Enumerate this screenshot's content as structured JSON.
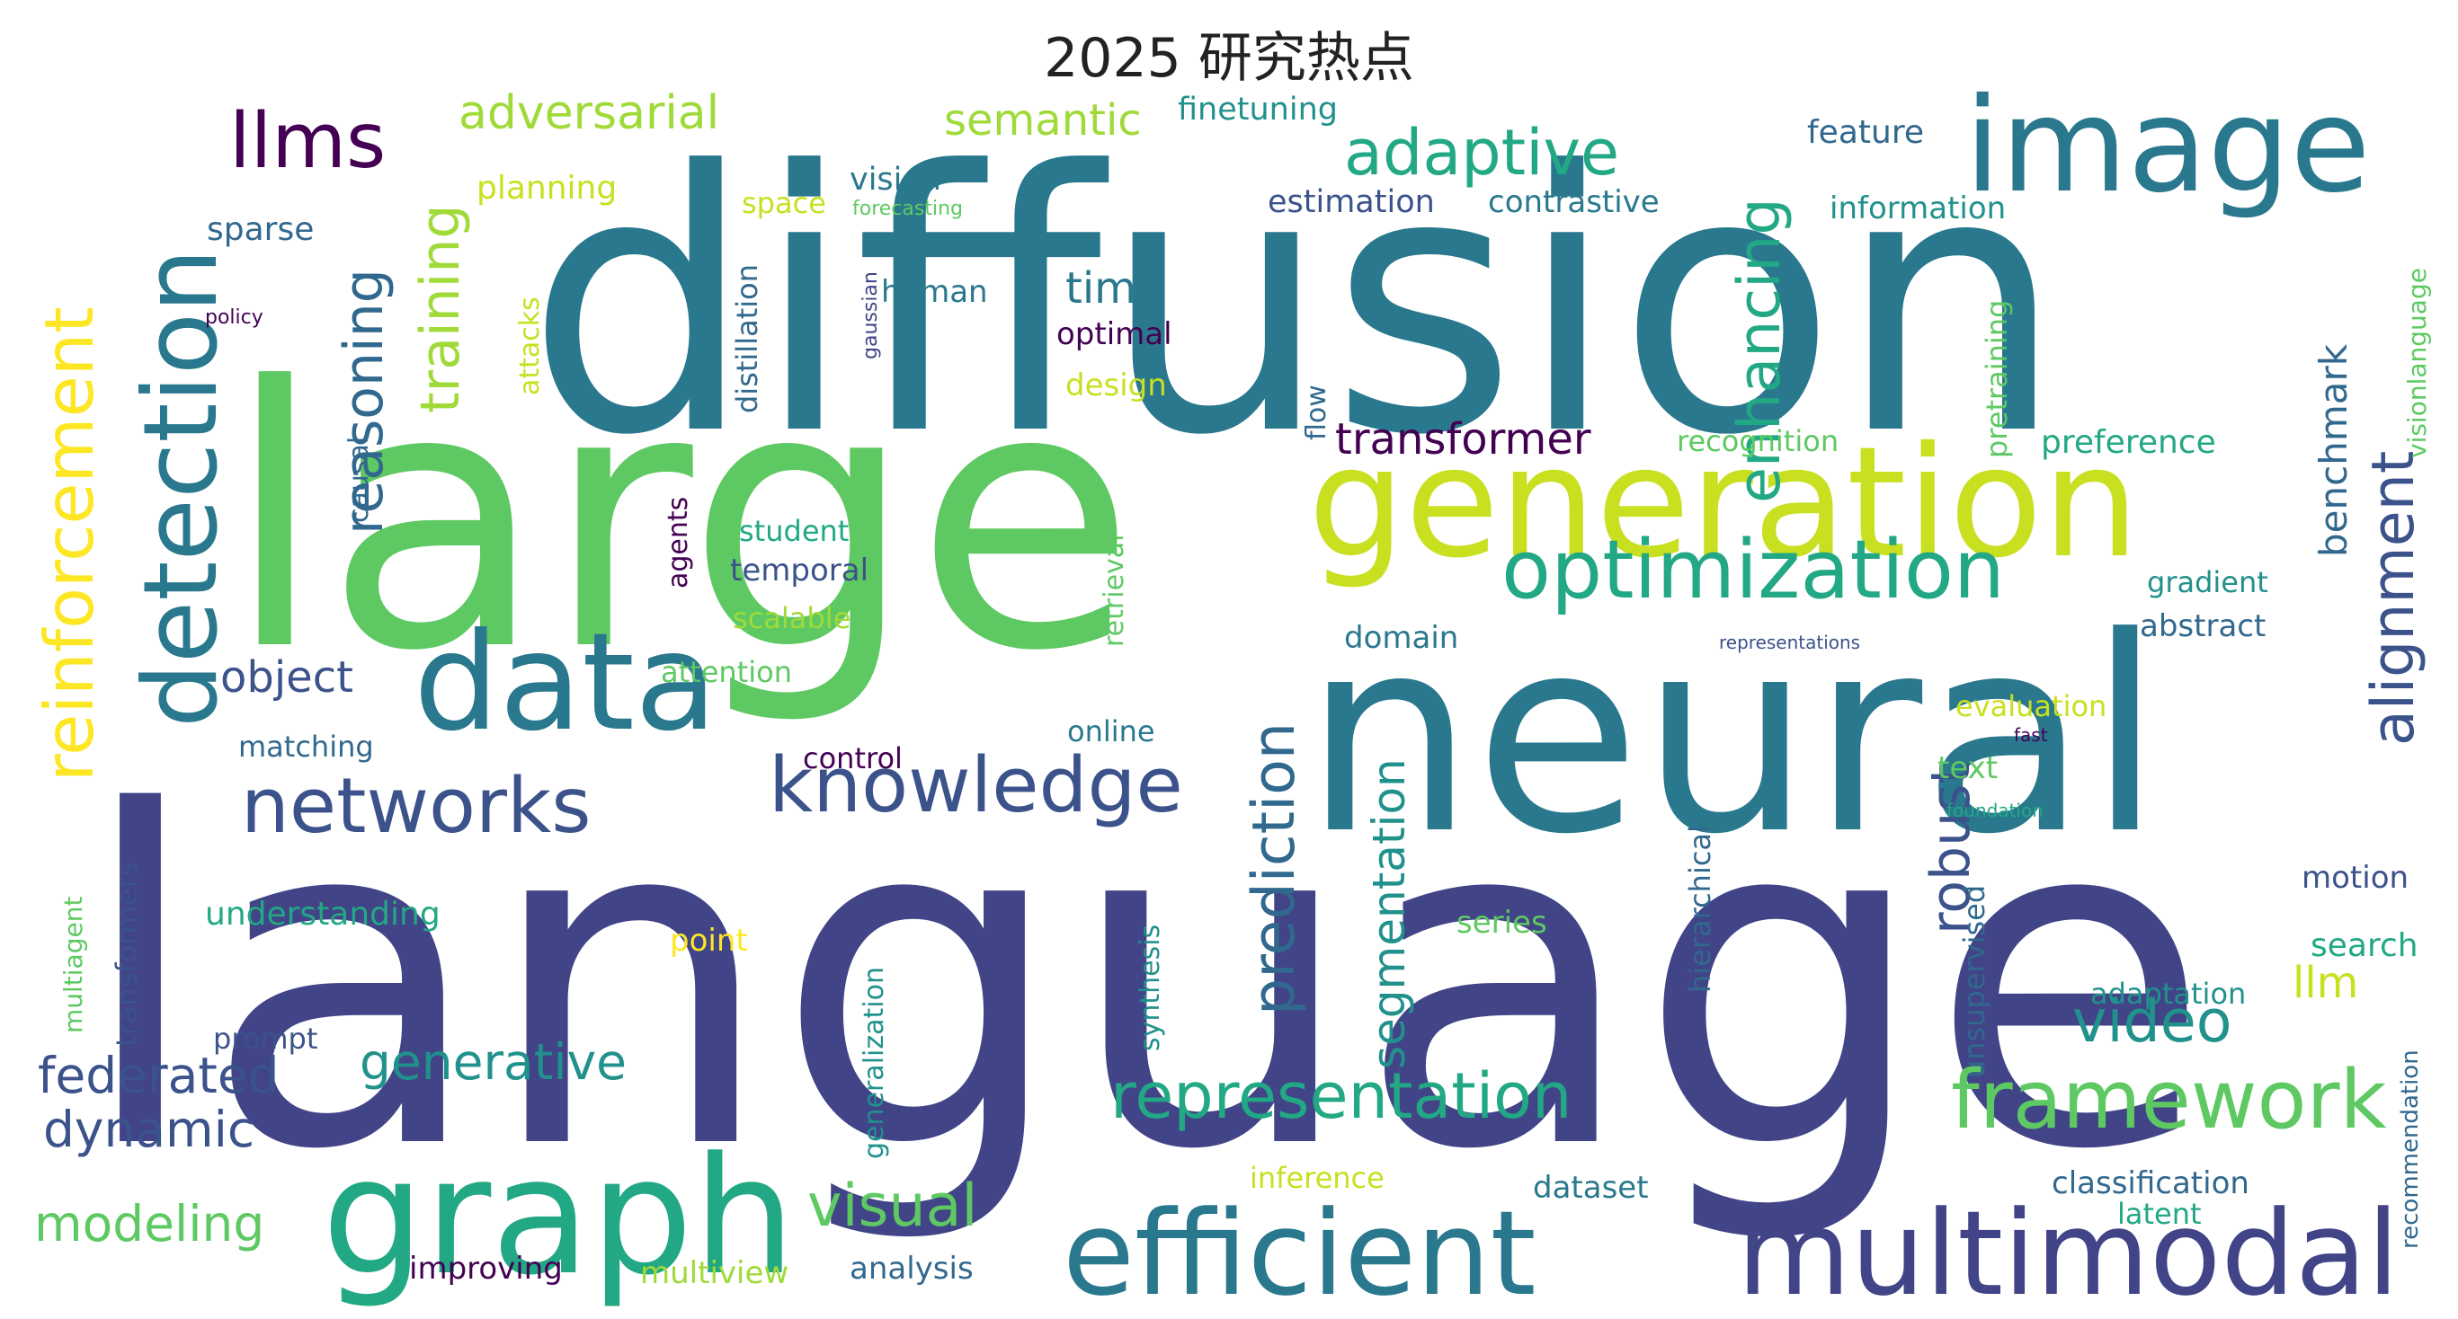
{
  "title": "2025 研究热点",
  "palette": "viridis",
  "words": [
    {
      "text": "language",
      "color": "#414487"
    },
    {
      "text": "diffusion",
      "color": "#2a788e"
    },
    {
      "text": "large",
      "color": "#5ec962"
    },
    {
      "text": "neural",
      "color": "#2a788e"
    },
    {
      "text": "generation",
      "color": "#c8e020"
    },
    {
      "text": "image",
      "color": "#2a788e"
    },
    {
      "text": "graph",
      "color": "#22a884"
    },
    {
      "text": "efficient",
      "color": "#2a788e"
    },
    {
      "text": "multimodal",
      "color": "#414487"
    },
    {
      "text": "data",
      "color": "#2a788e"
    },
    {
      "text": "detection",
      "color": "#2a788e"
    },
    {
      "text": "optimization",
      "color": "#22a884"
    },
    {
      "text": "reinforcement",
      "color": "#fde725"
    },
    {
      "text": "llms",
      "color": "#440154"
    },
    {
      "text": "networks",
      "color": "#3b528b"
    },
    {
      "text": "knowledge",
      "color": "#3b528b"
    },
    {
      "text": "framework",
      "color": "#5ec962"
    },
    {
      "text": "representation",
      "color": "#22a884"
    },
    {
      "text": "adaptive",
      "color": "#22a884"
    },
    {
      "text": "reasoning",
      "color": "#31688e"
    },
    {
      "text": "training",
      "color": "#a0da39"
    },
    {
      "text": "enhancing",
      "color": "#22a884"
    },
    {
      "text": "alignment",
      "color": "#3b528b"
    },
    {
      "text": "prediction",
      "color": "#31688e"
    },
    {
      "text": "video",
      "color": "#21918c"
    },
    {
      "text": "visual",
      "color": "#5ec962"
    },
    {
      "text": "generative",
      "color": "#21918c"
    },
    {
      "text": "dynamic",
      "color": "#3b528b"
    },
    {
      "text": "federated",
      "color": "#3b528b"
    },
    {
      "text": "modeling",
      "color": "#5ec962"
    },
    {
      "text": "segmentation",
      "color": "#21918c"
    },
    {
      "text": "robust",
      "color": "#3b528b"
    },
    {
      "text": "adversarial",
      "color": "#a0da39"
    },
    {
      "text": "semantic",
      "color": "#a0da39"
    },
    {
      "text": "transformer",
      "color": "#440154"
    },
    {
      "text": "object",
      "color": "#3b528b"
    },
    {
      "text": "time",
      "color": "#2a788e"
    },
    {
      "text": "llm",
      "color": "#c8e020"
    },
    {
      "text": "benchmark",
      "color": "#31688e"
    },
    {
      "text": "finetuning",
      "color": "#21918c"
    },
    {
      "text": "feature",
      "color": "#31688e"
    },
    {
      "text": "planning",
      "color": "#c8e020"
    },
    {
      "text": "vision",
      "color": "#2a788e"
    },
    {
      "text": "space",
      "color": "#c8e020"
    },
    {
      "text": "forecasting",
      "color": "#5ec962"
    },
    {
      "text": "estimation",
      "color": "#3b528b"
    },
    {
      "text": "contrastive",
      "color": "#2a788e"
    },
    {
      "text": "information",
      "color": "#21918c"
    },
    {
      "text": "visionlanguage",
      "color": "#5ec962"
    },
    {
      "text": "sparse",
      "color": "#31688e"
    },
    {
      "text": "distillation",
      "color": "#31688e"
    },
    {
      "text": "attacks",
      "color": "#c8e020"
    },
    {
      "text": "human",
      "color": "#2a788e"
    },
    {
      "text": "optimal",
      "color": "#440154"
    },
    {
      "text": "design",
      "color": "#c8e020"
    },
    {
      "text": "gaussian",
      "color": "#414487"
    },
    {
      "text": "policy",
      "color": "#440154"
    },
    {
      "text": "pretraining",
      "color": "#5ec962"
    },
    {
      "text": "causal",
      "color": "#31688e"
    },
    {
      "text": "flow",
      "color": "#31688e"
    },
    {
      "text": "recognition",
      "color": "#5ec962"
    },
    {
      "text": "preference",
      "color": "#22a884"
    },
    {
      "text": "agents",
      "color": "#440154"
    },
    {
      "text": "student",
      "color": "#22a884"
    },
    {
      "text": "temporal",
      "color": "#3b528b"
    },
    {
      "text": "scalable",
      "color": "#a0da39"
    },
    {
      "text": "retrieval",
      "color": "#5ec962"
    },
    {
      "text": "gradient",
      "color": "#21918c"
    },
    {
      "text": "abstract",
      "color": "#31688e"
    },
    {
      "text": "domain",
      "color": "#2a788e"
    },
    {
      "text": "representations",
      "color": "#3b528b"
    },
    {
      "text": "attention",
      "color": "#5ec962"
    },
    {
      "text": "evaluation",
      "color": "#c8e020"
    },
    {
      "text": "fast",
      "color": "#440154"
    },
    {
      "text": "matching",
      "color": "#31688e"
    },
    {
      "text": "control",
      "color": "#440154"
    },
    {
      "text": "online",
      "color": "#2a788e"
    },
    {
      "text": "text",
      "color": "#5ec962"
    },
    {
      "text": "hierarchical",
      "color": "#31688e"
    },
    {
      "text": "foundation",
      "color": "#22a884"
    },
    {
      "text": "multiagent",
      "color": "#5ec962"
    },
    {
      "text": "transformers",
      "color": "#3b528b"
    },
    {
      "text": "understanding",
      "color": "#22a884"
    },
    {
      "text": "point",
      "color": "#fde725"
    },
    {
      "text": "generalization",
      "color": "#21918c"
    },
    {
      "text": "synthesis",
      "color": "#21918c"
    },
    {
      "text": "series",
      "color": "#5ec962"
    },
    {
      "text": "unsupervised",
      "color": "#31688e"
    },
    {
      "text": "motion",
      "color": "#3b528b"
    },
    {
      "text": "search",
      "color": "#22a884"
    },
    {
      "text": "adaptation",
      "color": "#21918c"
    },
    {
      "text": "prompt",
      "color": "#3b528b"
    },
    {
      "text": "inference",
      "color": "#c8e020"
    },
    {
      "text": "dataset",
      "color": "#2a788e"
    },
    {
      "text": "classification",
      "color": "#31688e"
    },
    {
      "text": "latent",
      "color": "#22a884"
    },
    {
      "text": "recommendation",
      "color": "#31688e"
    },
    {
      "text": "improving",
      "color": "#440154"
    },
    {
      "text": "multiview",
      "color": "#a0da39"
    },
    {
      "text": "analysis",
      "color": "#31688e"
    }
  ]
}
